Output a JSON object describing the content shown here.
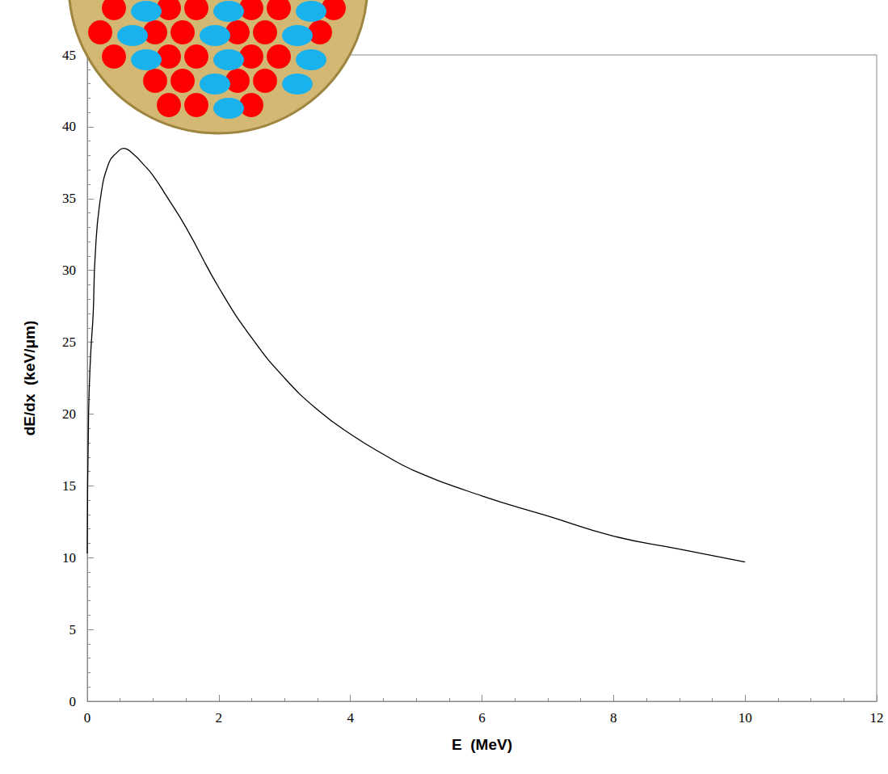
{
  "chart_data": {
    "type": "line",
    "x_label": "E  (MeV)",
    "y_label": "dE/dx  (keV/μm)",
    "x": [
      0,
      0.02,
      0.05,
      0.09,
      0.12,
      0.2,
      0.33,
      0.45,
      0.55,
      0.7,
      0.85,
      1.0,
      1.2,
      1.5,
      2.0,
      2.5,
      3.0,
      3.5,
      4.0,
      4.5,
      5.0,
      6.0,
      7.0,
      8.0,
      9.0,
      10.0
    ],
    "values": [
      10.3,
      20,
      24,
      27,
      31,
      35,
      37.5,
      38.2,
      38.5,
      38.1,
      37.4,
      36.6,
      35.2,
      33,
      28.8,
      25.3,
      22.5,
      20.3,
      18.6,
      17.2,
      16,
      14.3,
      12.9,
      11.5,
      10.6,
      9.7
    ],
    "color": "#000000",
    "xlim": [
      0,
      12
    ],
    "xticks": [
      0,
      2,
      4,
      6,
      8,
      10,
      12
    ],
    "ylim": [
      0,
      45
    ],
    "yticks": [
      0,
      5,
      10,
      15,
      20,
      25,
      30,
      35,
      40,
      45
    ],
    "grid": false
  }
}
